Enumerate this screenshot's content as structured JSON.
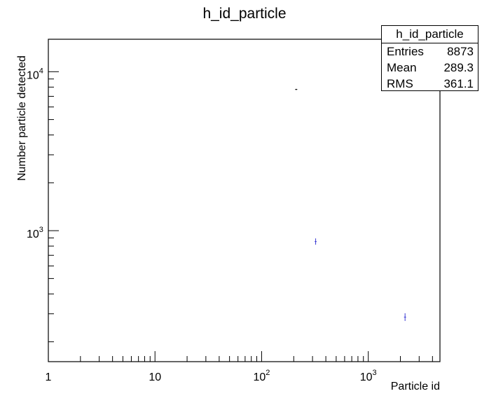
{
  "chart_data": {
    "type": "scatter",
    "title": "h_id_particle",
    "xlabel": "Particle id",
    "ylabel": "Number particle detected",
    "x_scale": "log",
    "y_scale": "log",
    "xlim": [
      1,
      4700
    ],
    "ylim": [
      150,
      16000
    ],
    "x_tick_labels": [
      {
        "value": 1,
        "base": "1",
        "exp": ""
      },
      {
        "value": 10,
        "base": "10",
        "exp": ""
      },
      {
        "value": 100,
        "base": "10",
        "exp": "2"
      },
      {
        "value": 1000,
        "base": "10",
        "exp": "3"
      }
    ],
    "y_tick_labels": [
      {
        "value": 1000,
        "base": "10",
        "exp": "3"
      },
      {
        "value": 10000,
        "base": "10",
        "exp": "4"
      }
    ],
    "points": [
      {
        "x": 211,
        "y": 7733
      },
      {
        "x": 321,
        "y": 854
      },
      {
        "x": 2212,
        "y": 286
      }
    ],
    "grid": false,
    "marker_color": "#3b3bd4",
    "stats": {
      "title": "h_id_particle",
      "rows": [
        {
          "label": "Entries",
          "value": "8873"
        },
        {
          "label": "Mean",
          "value": "289.3"
        },
        {
          "label": "RMS",
          "value": "361.1"
        }
      ]
    }
  }
}
